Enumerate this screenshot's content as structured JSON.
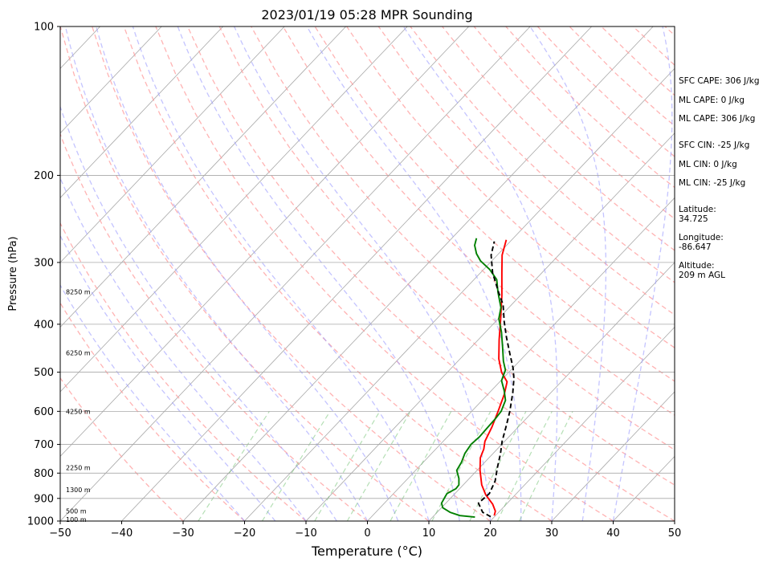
{
  "chart_data": {
    "type": "line",
    "title": "2023/01/19 05:28 MPR Sounding",
    "xlabel": "Temperature (°C)",
    "ylabel": "Pressure (hPa)",
    "xlim": [
      -50,
      50
    ],
    "ylim": [
      1000,
      100
    ],
    "y_scale": "log",
    "skew": "skew-T log-P",
    "x_ticks": [
      "−50",
      "−40",
      "−30",
      "−20",
      "−10",
      "0",
      "10",
      "20",
      "30",
      "40",
      "50"
    ],
    "y_ticks": [
      "100",
      "200",
      "300",
      "400",
      "500",
      "600",
      "700",
      "800",
      "900",
      "1000"
    ],
    "height_labels": [
      {
        "p": 993,
        "text": "100 m"
      },
      {
        "p": 955,
        "text": "500 m"
      },
      {
        "p": 865,
        "text": "1300 m"
      },
      {
        "p": 780,
        "text": "2250 m"
      },
      {
        "p": 600,
        "text": "4250 m"
      },
      {
        "p": 457,
        "text": "6250 m"
      },
      {
        "p": 344,
        "text": "8250 m"
      }
    ],
    "grid": true,
    "series": [
      {
        "color": "#ff0000",
        "style": "solid",
        "points": [
          [
            19.8,
            975
          ],
          [
            19.3,
            955
          ],
          [
            17.8,
            925
          ],
          [
            15.2,
            885
          ],
          [
            13.0,
            845
          ],
          [
            10.5,
            790
          ],
          [
            8.6,
            745
          ],
          [
            7.8,
            715
          ],
          [
            6.8,
            690
          ],
          [
            5.7,
            645
          ],
          [
            4.3,
            600
          ],
          [
            2.7,
            555
          ],
          [
            1.2,
            523
          ],
          [
            -1.2,
            500
          ],
          [
            -3.7,
            470
          ],
          [
            -6.6,
            430
          ],
          [
            -9.6,
            390
          ],
          [
            -13.0,
            350
          ],
          [
            -16.5,
            315
          ],
          [
            -19.2,
            290
          ],
          [
            -20.9,
            270
          ]
        ]
      },
      {
        "color": "#008000",
        "style": "solid",
        "points": [
          [
            16.9,
            982
          ],
          [
            14.2,
            975
          ],
          [
            12.1,
            960
          ],
          [
            10.2,
            940
          ],
          [
            9.3,
            920
          ],
          [
            8.7,
            880
          ],
          [
            9.4,
            860
          ],
          [
            9.3,
            845
          ],
          [
            8.3,
            820
          ],
          [
            6.7,
            790
          ],
          [
            6.2,
            760
          ],
          [
            5.4,
            730
          ],
          [
            5.0,
            700
          ],
          [
            5.2,
            675
          ],
          [
            5.1,
            650
          ],
          [
            5.0,
            620
          ],
          [
            4.8,
            600
          ],
          [
            3.8,
            570
          ],
          [
            2.1,
            545
          ],
          [
            0.1,
            520
          ],
          [
            -0.9,
            495
          ],
          [
            -2.6,
            475
          ],
          [
            -4.9,
            445
          ],
          [
            -7.4,
            415
          ],
          [
            -9.9,
            390
          ],
          [
            -11.3,
            370
          ],
          [
            -14.1,
            345
          ],
          [
            -16.3,
            325
          ],
          [
            -19.0,
            310
          ],
          [
            -21.8,
            298
          ],
          [
            -23.6,
            288
          ],
          [
            -25.2,
            277
          ],
          [
            -26.0,
            268
          ]
        ]
      },
      {
        "color": "#000000",
        "style": "dashed",
        "points": [
          [
            19.4,
            980
          ],
          [
            17.4,
            960
          ],
          [
            15.3,
            920
          ],
          [
            15.6,
            880
          ],
          [
            14.6,
            830
          ],
          [
            12.9,
            780
          ],
          [
            11.2,
            730
          ],
          [
            9.6,
            690
          ],
          [
            7.8,
            640
          ],
          [
            6.2,
            600
          ],
          [
            3.8,
            550
          ],
          [
            1.8,
            515
          ],
          [
            0.0,
            490
          ],
          [
            -2.6,
            460
          ],
          [
            -5.8,
            425
          ],
          [
            -8.6,
            395
          ],
          [
            -11.4,
            365
          ],
          [
            -14.0,
            345
          ],
          [
            -18.0,
            315
          ],
          [
            -21.0,
            290
          ],
          [
            -22.6,
            272
          ]
        ]
      }
    ]
  },
  "stats": {
    "sfc_cape": "SFC CAPE: 306 J/kg",
    "ml_cape": "ML CAPE: 0 J/kg",
    "ml_cape2": "ML CAPE: 306 J/kg",
    "sfc_cin": "SFC CIN: -25 J/kg",
    "ml_cin": "ML CIN: 0 J/kg",
    "ml_cin2": "ML CIN: -25 J/kg",
    "latitude": "Latitude:\n34.725",
    "longitude": "Longitude:\n-86.647",
    "altitude": "Altitude:\n209 m AGL"
  }
}
